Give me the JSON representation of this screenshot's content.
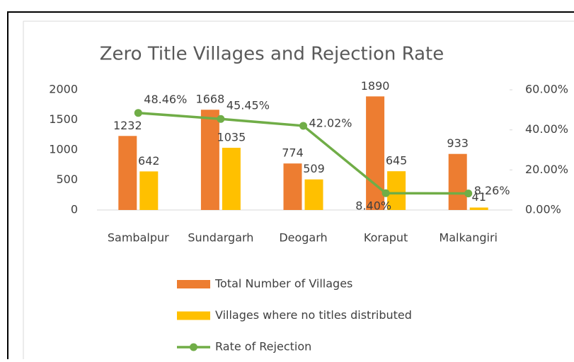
{
  "chart_data": {
    "type": "bar",
    "title": "Zero Title Villages and Rejection Rate",
    "categories": [
      "Sambalpur",
      "Sundargarh",
      "Deogarh",
      "Koraput",
      "Malkangiri"
    ],
    "series": [
      {
        "name": "Total Number of Villages",
        "color": "#ed7d31",
        "values": [
          1232,
          1668,
          774,
          1890,
          933
        ]
      },
      {
        "name": "Villages where no titles distributed",
        "color": "#ffc000",
        "values": [
          642,
          1035,
          509,
          645,
          41
        ]
      },
      {
        "name": "Rate of Rejection",
        "type": "line",
        "axis": "y2",
        "color": "#70ad47",
        "values": [
          48.46,
          45.45,
          42.02,
          8.4,
          8.26
        ],
        "value_labels": [
          "48.46%",
          "45.45%",
          "42.02%",
          "8.40%",
          "8.26%"
        ]
      }
    ],
    "ylim": [
      0,
      2000
    ],
    "yticks": [
      0,
      500,
      1000,
      1500,
      2000
    ],
    "y2lim": [
      0,
      60
    ],
    "y2ticks": [
      {
        "value": 0,
        "label": "0.00%"
      },
      {
        "value": 20,
        "label": "20.00%"
      },
      {
        "value": 40,
        "label": "40.00%"
      },
      {
        "value": 60,
        "label": "60.00%"
      }
    ],
    "grid": false,
    "legend": "bottom"
  }
}
